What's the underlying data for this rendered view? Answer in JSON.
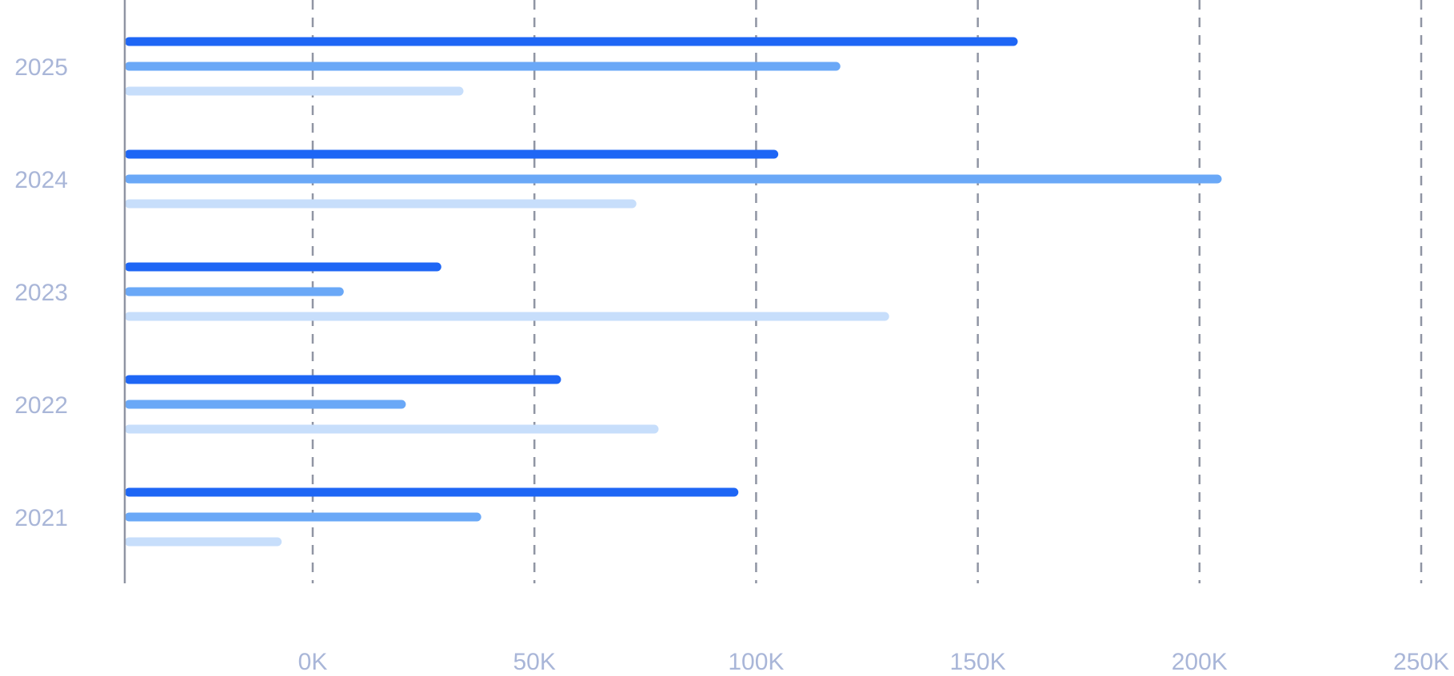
{
  "chart_data": {
    "type": "bar",
    "orientation": "horizontal",
    "title": "",
    "xlabel": "",
    "ylabel": "",
    "categories": [
      "2025",
      "2024",
      "2023",
      "2022",
      "2021"
    ],
    "x_ticks": [
      "0K",
      "50K",
      "100K",
      "150K",
      "200K",
      "250K"
    ],
    "xlim": [
      -42000,
      250000
    ],
    "grid": true,
    "legend": "none",
    "series": [
      {
        "color": "#1E66F5",
        "values": [
          159000,
          105000,
          29000,
          56000,
          96000
        ]
      },
      {
        "color": "#6AA8F7",
        "values": [
          119000,
          205000,
          7000,
          21000,
          38000
        ]
      },
      {
        "color": "#C7DEFB",
        "values": [
          34000,
          73000,
          130000,
          78000,
          -7000
        ]
      }
    ],
    "colors": {
      "axis": "#9095A3",
      "grid": "#9095A3",
      "label": "#A9B6D8"
    }
  }
}
